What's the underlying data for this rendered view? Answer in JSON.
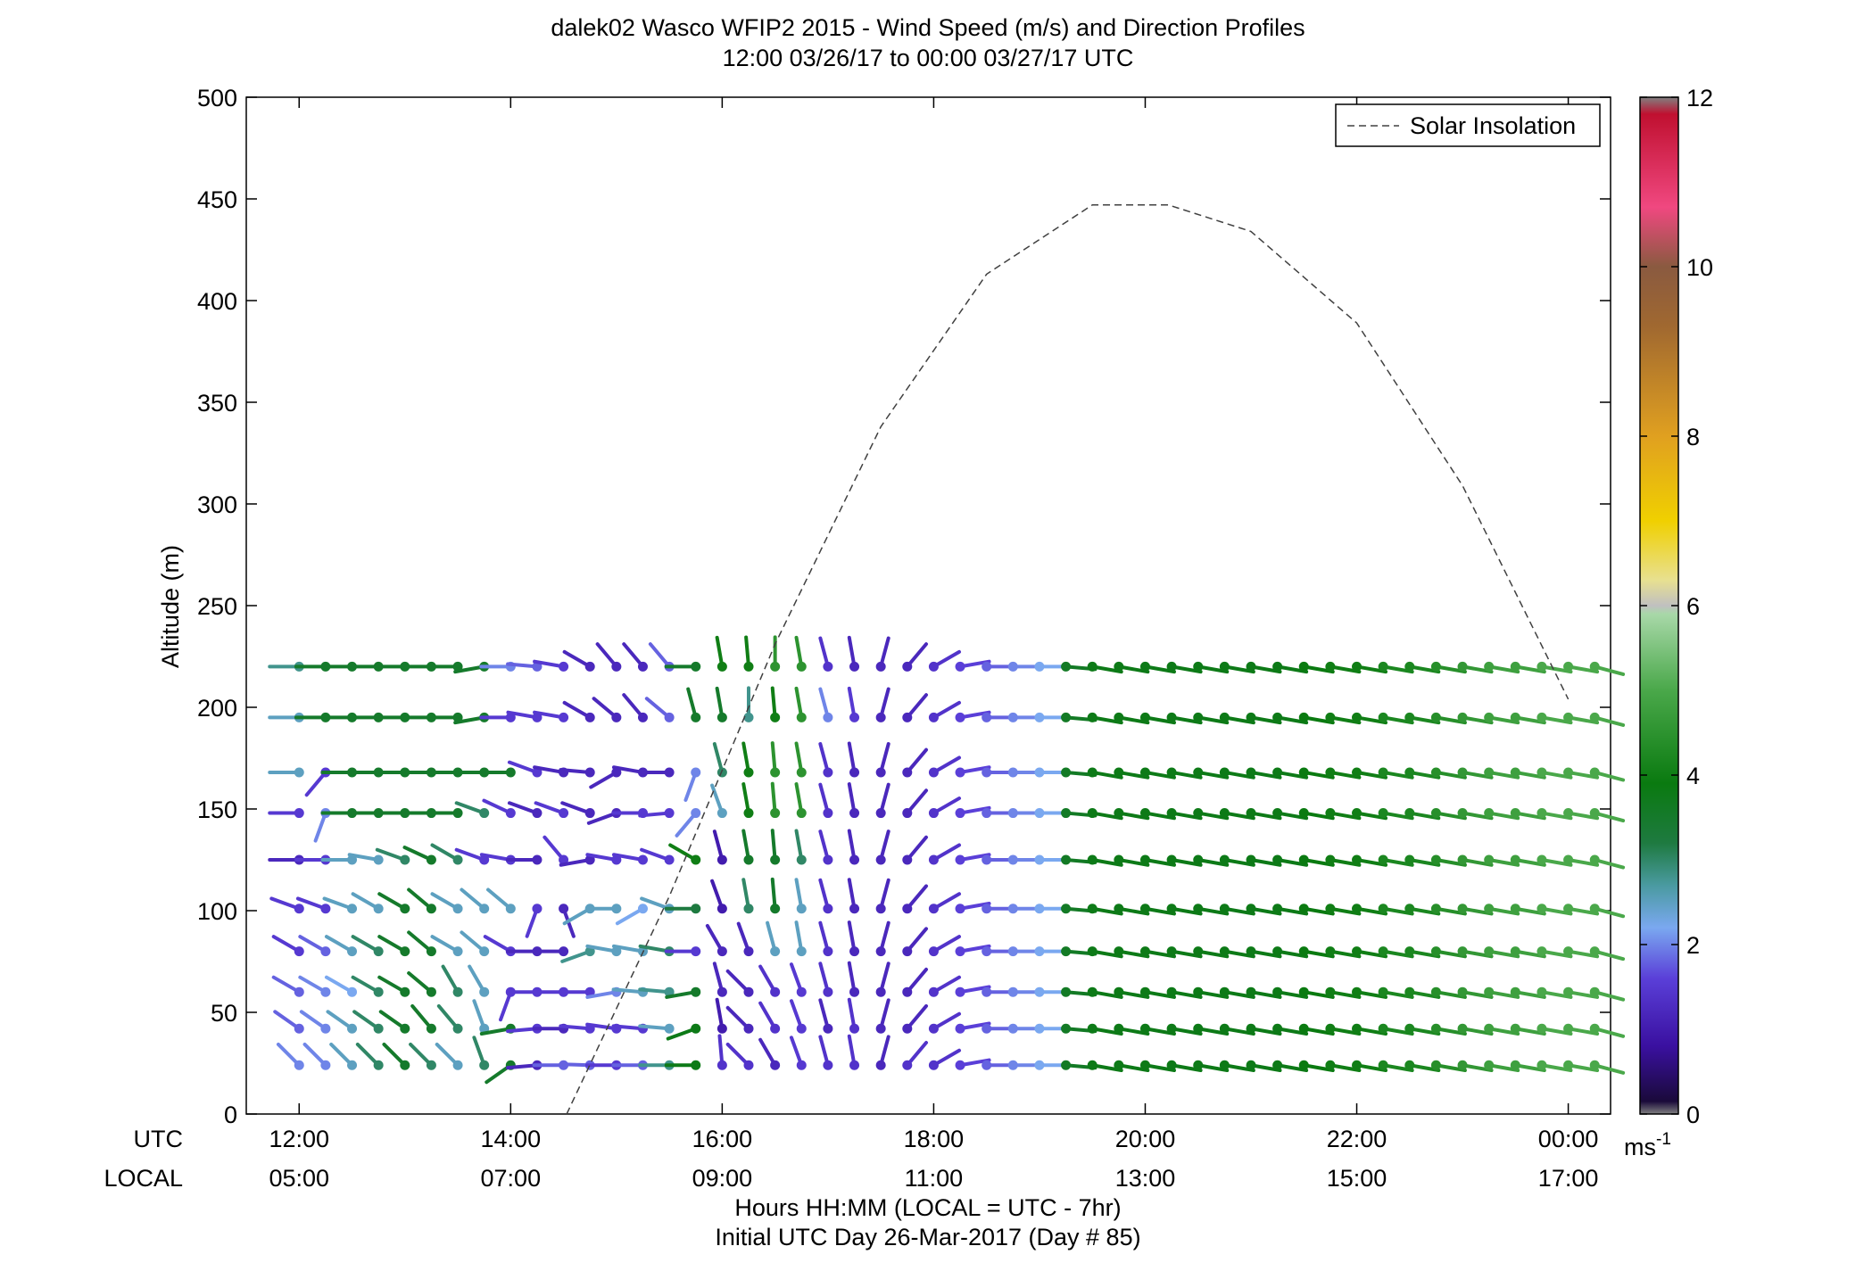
{
  "chart_data": {
    "type": "wind-barb-profile",
    "title": "dalek02 Wasco WFIP2 2015 - Wind Speed (m/s) and Direction Profiles",
    "subtitle": "12:00 03/26/17 to 00:00 03/27/17  UTC",
    "ylabel": "Altitude (m)",
    "xlabel": "Hours HH:MM  (LOCAL = UTC - 7hr)",
    "xlabel2": "Initial UTC Day 26-Mar-2017 (Day # 85)",
    "x_row_labels": [
      "UTC",
      "LOCAL"
    ],
    "ylim": [
      0,
      500
    ],
    "yticks": [
      0,
      50,
      100,
      150,
      200,
      250,
      300,
      350,
      400,
      450,
      500
    ],
    "xlim_hours": [
      11.5,
      24.4
    ],
    "xticks": [
      {
        "hour": 12,
        "utc": "12:00",
        "local": "05:00"
      },
      {
        "hour": 14,
        "utc": "14:00",
        "local": "07:00"
      },
      {
        "hour": 16,
        "utc": "16:00",
        "local": "09:00"
      },
      {
        "hour": 18,
        "utc": "18:00",
        "local": "11:00"
      },
      {
        "hour": 20,
        "utc": "20:00",
        "local": "13:00"
      },
      {
        "hour": 22,
        "utc": "22:00",
        "local": "15:00"
      },
      {
        "hour": 24,
        "utc": "00:00",
        "local": "17:00"
      }
    ],
    "legend": {
      "label": "Solar Insolation",
      "placement": "top-right"
    },
    "colorbar": {
      "range": [
        0,
        12
      ],
      "ticks": [
        0,
        2,
        4,
        6,
        8,
        10,
        12
      ],
      "unit_base": "ms",
      "unit_exp": "-1",
      "stops": [
        {
          "v": 0,
          "c": "#808080"
        },
        {
          "v": 0.15,
          "c": "#1a0a3a"
        },
        {
          "v": 0.8,
          "c": "#3a10a0"
        },
        {
          "v": 1.6,
          "c": "#5a3fd8"
        },
        {
          "v": 2.2,
          "c": "#7aa8f0"
        },
        {
          "v": 2.7,
          "c": "#4a9aa0"
        },
        {
          "v": 3.2,
          "c": "#1e7a40"
        },
        {
          "v": 3.9,
          "c": "#0a7a10"
        },
        {
          "v": 5.0,
          "c": "#4aa84a"
        },
        {
          "v": 5.9,
          "c": "#a8d8a8"
        },
        {
          "v": 6.0,
          "c": "#c0c0c0"
        },
        {
          "v": 6.3,
          "c": "#e8e090"
        },
        {
          "v": 7.0,
          "c": "#f0d000"
        },
        {
          "v": 8.0,
          "c": "#e0a020"
        },
        {
          "v": 9.3,
          "c": "#a06830"
        },
        {
          "v": 10.0,
          "c": "#8a5a40"
        },
        {
          "v": 10.7,
          "c": "#f04880"
        },
        {
          "v": 11.8,
          "c": "#c01030"
        },
        {
          "v": 12,
          "c": "#808080"
        }
      ]
    },
    "solar_insolation_curve": {
      "hours": [
        14.53,
        15.5,
        16.5,
        17.5,
        18.5,
        19.5,
        20.22,
        21,
        22,
        23,
        24
      ],
      "alt": [
        0,
        107,
        231,
        338,
        413,
        447,
        447,
        434,
        389,
        309,
        204
      ]
    },
    "time_hours": [
      12.0,
      12.25,
      12.5,
      12.75,
      13.0,
      13.25,
      13.5,
      13.75,
      14.0,
      14.25,
      14.5,
      14.75,
      15.0,
      15.25,
      15.5,
      15.75,
      16.0,
      16.25,
      16.5,
      16.75,
      17.0,
      17.25,
      17.5,
      17.75,
      18.0,
      18.25,
      18.5,
      18.75,
      19.0,
      19.25,
      19.5,
      19.75,
      20.0,
      20.25,
      20.5,
      20.75,
      21.0,
      21.25,
      21.5,
      21.75,
      22.0,
      22.25,
      22.5,
      22.75,
      23.0,
      23.25,
      23.5,
      23.75,
      24.0,
      24.25
    ],
    "profiles": [
      {
        "alt": 24,
        "speed": [
          2.0,
          2.0,
          2.5,
          3.0,
          3.5,
          3.0,
          2.5,
          3.0,
          3.5,
          1.2,
          1.8,
          1.8,
          1.5,
          1.8,
          2.8,
          3.8,
          1.4,
          1.4,
          1.2,
          1.5,
          1.4,
          1.4,
          1.2,
          1.4,
          1.4,
          1.6,
          1.8,
          2.0,
          2.2,
          3.6,
          3.8,
          3.8,
          3.8,
          3.8,
          3.8,
          3.8,
          3.8,
          3.8,
          3.9,
          4.0,
          4.0,
          4.2,
          4.2,
          4.4,
          4.6,
          4.8,
          4.8,
          5.0,
          5.0,
          5.0
        ],
        "dir": [
          315,
          315,
          315,
          315,
          315,
          315,
          315,
          340,
          235,
          265,
          270,
          272,
          270,
          270,
          270,
          270,
          355,
          315,
          330,
          340,
          345,
          350,
          15,
          40,
          60,
          80,
          90,
          90,
          90,
          95,
          100,
          100,
          100,
          100,
          100,
          100,
          100,
          100,
          100,
          100,
          100,
          100,
          100,
          100,
          100,
          100,
          100,
          100,
          100,
          105
        ]
      },
      {
        "alt": 42,
        "speed": [
          1.8,
          2.0,
          2.5,
          3.0,
          3.5,
          3.5,
          3.0,
          2.5,
          3.5,
          1.5,
          1.2,
          1.5,
          1.5,
          1.5,
          2.5,
          3.8,
          1.0,
          1.2,
          1.4,
          1.5,
          1.2,
          1.4,
          1.2,
          1.2,
          1.4,
          1.6,
          1.8,
          2.0,
          2.2,
          3.6,
          3.8,
          3.8,
          3.8,
          3.8,
          3.8,
          3.8,
          3.8,
          3.8,
          3.9,
          4.0,
          4.0,
          4.2,
          4.2,
          4.4,
          4.6,
          4.8,
          4.8,
          5.0,
          5.0,
          5.0
        ],
        "dir": [
          305,
          305,
          305,
          305,
          305,
          320,
          320,
          340,
          260,
          265,
          270,
          275,
          278,
          275,
          275,
          250,
          350,
          315,
          330,
          340,
          345,
          350,
          15,
          40,
          60,
          80,
          90,
          90,
          90,
          95,
          100,
          100,
          100,
          100,
          100,
          100,
          100,
          100,
          100,
          100,
          100,
          100,
          100,
          100,
          100,
          100,
          100,
          100,
          100,
          105
        ]
      },
      {
        "alt": 60,
        "speed": [
          1.8,
          2.0,
          2.2,
          3.0,
          3.5,
          3.5,
          3.0,
          2.5,
          1.5,
          1.5,
          1.5,
          1.5,
          2.0,
          2.5,
          2.8,
          3.5,
          1.2,
          1.2,
          1.4,
          1.5,
          1.4,
          1.2,
          1.2,
          1.2,
          1.4,
          1.6,
          1.8,
          2.0,
          2.2,
          3.6,
          3.8,
          3.8,
          3.8,
          3.8,
          3.8,
          3.8,
          3.8,
          3.8,
          3.9,
          4.0,
          4.0,
          4.2,
          4.2,
          4.4,
          4.6,
          4.8,
          4.8,
          5.0,
          5.0,
          5.0
        ],
        "dir": [
          300,
          300,
          300,
          300,
          300,
          310,
          330,
          330,
          200,
          270,
          270,
          270,
          260,
          275,
          275,
          260,
          345,
          315,
          330,
          340,
          345,
          350,
          15,
          40,
          60,
          80,
          90,
          90,
          90,
          95,
          100,
          100,
          100,
          100,
          100,
          100,
          100,
          100,
          100,
          100,
          100,
          100,
          100,
          100,
          100,
          100,
          100,
          100,
          100,
          105
        ]
      },
      {
        "alt": 80,
        "speed": [
          1.5,
          1.8,
          2.5,
          3.0,
          3.5,
          3.5,
          2.5,
          2.5,
          1.5,
          1.2,
          1.2,
          2.8,
          2.5,
          2.5,
          3.0,
          1.5,
          1.2,
          1.2,
          2.5,
          2.5,
          1.4,
          1.2,
          1.2,
          1.2,
          1.4,
          1.6,
          1.8,
          2.0,
          2.2,
          3.6,
          3.8,
          3.8,
          3.8,
          3.8,
          3.8,
          3.8,
          3.8,
          3.8,
          3.9,
          4.0,
          4.0,
          4.2,
          4.2,
          4.4,
          4.6,
          4.8,
          4.8,
          5.0,
          5.0,
          5.0
        ],
        "dir": [
          300,
          300,
          300,
          300,
          300,
          310,
          300,
          310,
          300,
          270,
          270,
          250,
          280,
          280,
          280,
          270,
          330,
          340,
          345,
          350,
          345,
          350,
          15,
          40,
          60,
          80,
          90,
          90,
          90,
          95,
          100,
          100,
          100,
          100,
          100,
          100,
          100,
          100,
          100,
          100,
          100,
          100,
          100,
          100,
          100,
          100,
          100,
          100,
          100,
          105
        ]
      },
      {
        "alt": 101,
        "speed": [
          1.5,
          1.5,
          2.5,
          2.5,
          3.5,
          3.5,
          2.5,
          2.5,
          2.5,
          1.5,
          1.2,
          2.5,
          2.5,
          2.2,
          2.5,
          3.2,
          1.0,
          3.0,
          3.5,
          2.5,
          1.4,
          1.2,
          1.2,
          1.2,
          1.4,
          1.6,
          1.8,
          2.0,
          2.2,
          3.6,
          3.8,
          3.8,
          3.8,
          3.8,
          3.8,
          3.8,
          3.8,
          3.8,
          3.9,
          4.0,
          4.0,
          4.2,
          4.2,
          4.4,
          4.6,
          4.8,
          4.8,
          5.0,
          5.0,
          5.0
        ],
        "dir": [
          290,
          290,
          290,
          300,
          300,
          310,
          300,
          310,
          310,
          200,
          160,
          240,
          270,
          240,
          290,
          270,
          340,
          350,
          355,
          350,
          345,
          350,
          15,
          40,
          60,
          80,
          90,
          90,
          90,
          95,
          100,
          100,
          100,
          100,
          100,
          100,
          100,
          100,
          100,
          100,
          100,
          100,
          100,
          100,
          100,
          100,
          100,
          100,
          100,
          105
        ]
      },
      {
        "alt": 125,
        "speed": [
          1.2,
          1.5,
          2.5,
          2.5,
          3.0,
          3.5,
          3.0,
          1.5,
          1.5,
          1.2,
          1.5,
          1.2,
          1.5,
          1.5,
          1.5,
          4.0,
          1.0,
          3.5,
          3.5,
          3.0,
          1.4,
          1.2,
          1.2,
          1.2,
          1.4,
          1.6,
          1.8,
          2.0,
          2.2,
          3.6,
          3.8,
          3.8,
          3.8,
          3.8,
          3.8,
          3.8,
          3.8,
          3.8,
          3.9,
          4.0,
          4.0,
          4.2,
          4.2,
          4.4,
          4.6,
          4.8,
          4.8,
          5.0,
          5.0,
          5.0
        ],
        "dir": [
          270,
          270,
          270,
          280,
          290,
          295,
          300,
          290,
          280,
          270,
          320,
          260,
          280,
          280,
          290,
          300,
          345,
          350,
          355,
          350,
          345,
          350,
          15,
          40,
          60,
          80,
          90,
          90,
          90,
          95,
          100,
          100,
          100,
          100,
          100,
          100,
          100,
          100,
          100,
          100,
          100,
          100,
          100,
          100,
          100,
          100,
          100,
          100,
          100,
          105
        ]
      },
      {
        "alt": 148,
        "speed": [
          1.5,
          2.0,
          3.5,
          3.5,
          3.5,
          3.5,
          3.5,
          3.0,
          1.5,
          1.2,
          1.5,
          1.2,
          1.2,
          1.5,
          1.5,
          2.0,
          2.5,
          4.0,
          4.5,
          4.5,
          1.4,
          1.2,
          1.2,
          1.2,
          1.4,
          1.6,
          1.8,
          2.0,
          2.2,
          3.6,
          3.8,
          3.8,
          3.8,
          3.8,
          3.8,
          3.8,
          3.8,
          3.8,
          3.9,
          4.0,
          4.0,
          4.2,
          4.2,
          4.4,
          4.6,
          4.8,
          4.8,
          5.0,
          5.0,
          5.0
        ],
        "dir": [
          270,
          200,
          270,
          270,
          270,
          270,
          270,
          290,
          295,
          290,
          290,
          290,
          250,
          270,
          265,
          220,
          340,
          350,
          355,
          350,
          345,
          350,
          15,
          40,
          60,
          80,
          90,
          90,
          90,
          95,
          100,
          100,
          100,
          100,
          100,
          100,
          100,
          100,
          100,
          100,
          100,
          100,
          100,
          100,
          100,
          100,
          100,
          100,
          100,
          105
        ]
      },
      {
        "alt": 168,
        "speed": [
          2.5,
          1.5,
          3.5,
          3.5,
          3.5,
          3.5,
          3.5,
          3.5,
          3.5,
          1.5,
          1.2,
          1.2,
          1.2,
          1.2,
          1.2,
          2.0,
          3.0,
          4.0,
          4.5,
          4.5,
          1.4,
          1.2,
          1.2,
          1.2,
          1.4,
          1.6,
          1.8,
          2.0,
          2.2,
          3.6,
          3.8,
          3.8,
          3.8,
          3.8,
          3.8,
          3.8,
          3.8,
          3.8,
          3.9,
          4.0,
          4.0,
          4.2,
          4.2,
          4.4,
          4.6,
          4.8,
          4.8,
          5.0,
          5.0,
          5.0
        ],
        "dir": [
          270,
          220,
          270,
          270,
          270,
          270,
          270,
          270,
          270,
          290,
          280,
          275,
          240,
          280,
          270,
          200,
          345,
          350,
          355,
          350,
          345,
          350,
          15,
          40,
          60,
          80,
          90,
          90,
          90,
          95,
          100,
          100,
          100,
          100,
          100,
          100,
          100,
          100,
          100,
          100,
          100,
          100,
          100,
          100,
          100,
          100,
          100,
          100,
          100,
          105
        ]
      },
      {
        "alt": 195,
        "speed": [
          2.5,
          3.5,
          3.5,
          3.5,
          3.5,
          3.5,
          3.5,
          3.5,
          1.5,
          1.5,
          1.5,
          1.2,
          1.2,
          1.2,
          1.8,
          3.5,
          3.5,
          2.8,
          4.0,
          4.5,
          2.0,
          1.5,
          1.2,
          1.2,
          1.4,
          1.6,
          1.8,
          2.0,
          2.2,
          3.6,
          3.8,
          3.8,
          3.8,
          3.8,
          3.8,
          3.8,
          3.8,
          3.8,
          3.9,
          4.0,
          4.0,
          4.2,
          4.2,
          4.4,
          4.6,
          4.8,
          4.8,
          5.0,
          5.0,
          5.0
        ],
        "dir": [
          270,
          270,
          270,
          270,
          270,
          270,
          270,
          260,
          270,
          280,
          280,
          300,
          310,
          320,
          310,
          345,
          350,
          0,
          355,
          350,
          345,
          350,
          15,
          40,
          60,
          80,
          90,
          90,
          90,
          95,
          100,
          100,
          100,
          100,
          100,
          100,
          100,
          100,
          100,
          100,
          100,
          100,
          100,
          100,
          100,
          100,
          100,
          100,
          100,
          105
        ]
      },
      {
        "alt": 220,
        "speed": [
          2.8,
          3.5,
          3.5,
          3.5,
          3.5,
          3.5,
          3.5,
          3.5,
          2.0,
          1.8,
          1.5,
          1.2,
          1.2,
          1.2,
          1.8,
          3.5,
          4.0,
          4.0,
          4.5,
          4.5,
          1.4,
          1.2,
          1.2,
          1.2,
          1.4,
          1.6,
          1.8,
          2.0,
          2.2,
          3.6,
          3.8,
          3.8,
          3.8,
          3.8,
          3.8,
          3.8,
          3.8,
          3.8,
          3.9,
          4.0,
          4.0,
          4.2,
          4.2,
          4.4,
          4.6,
          4.8,
          4.8,
          5.0,
          5.0,
          5.0
        ],
        "dir": [
          270,
          270,
          270,
          270,
          270,
          270,
          270,
          260,
          270,
          275,
          280,
          300,
          320,
          320,
          320,
          270,
          350,
          355,
          0,
          350,
          345,
          350,
          15,
          40,
          60,
          80,
          90,
          90,
          90,
          95,
          100,
          100,
          100,
          100,
          100,
          100,
          100,
          100,
          100,
          100,
          100,
          100,
          100,
          100,
          100,
          100,
          100,
          100,
          100,
          105
        ]
      }
    ]
  }
}
